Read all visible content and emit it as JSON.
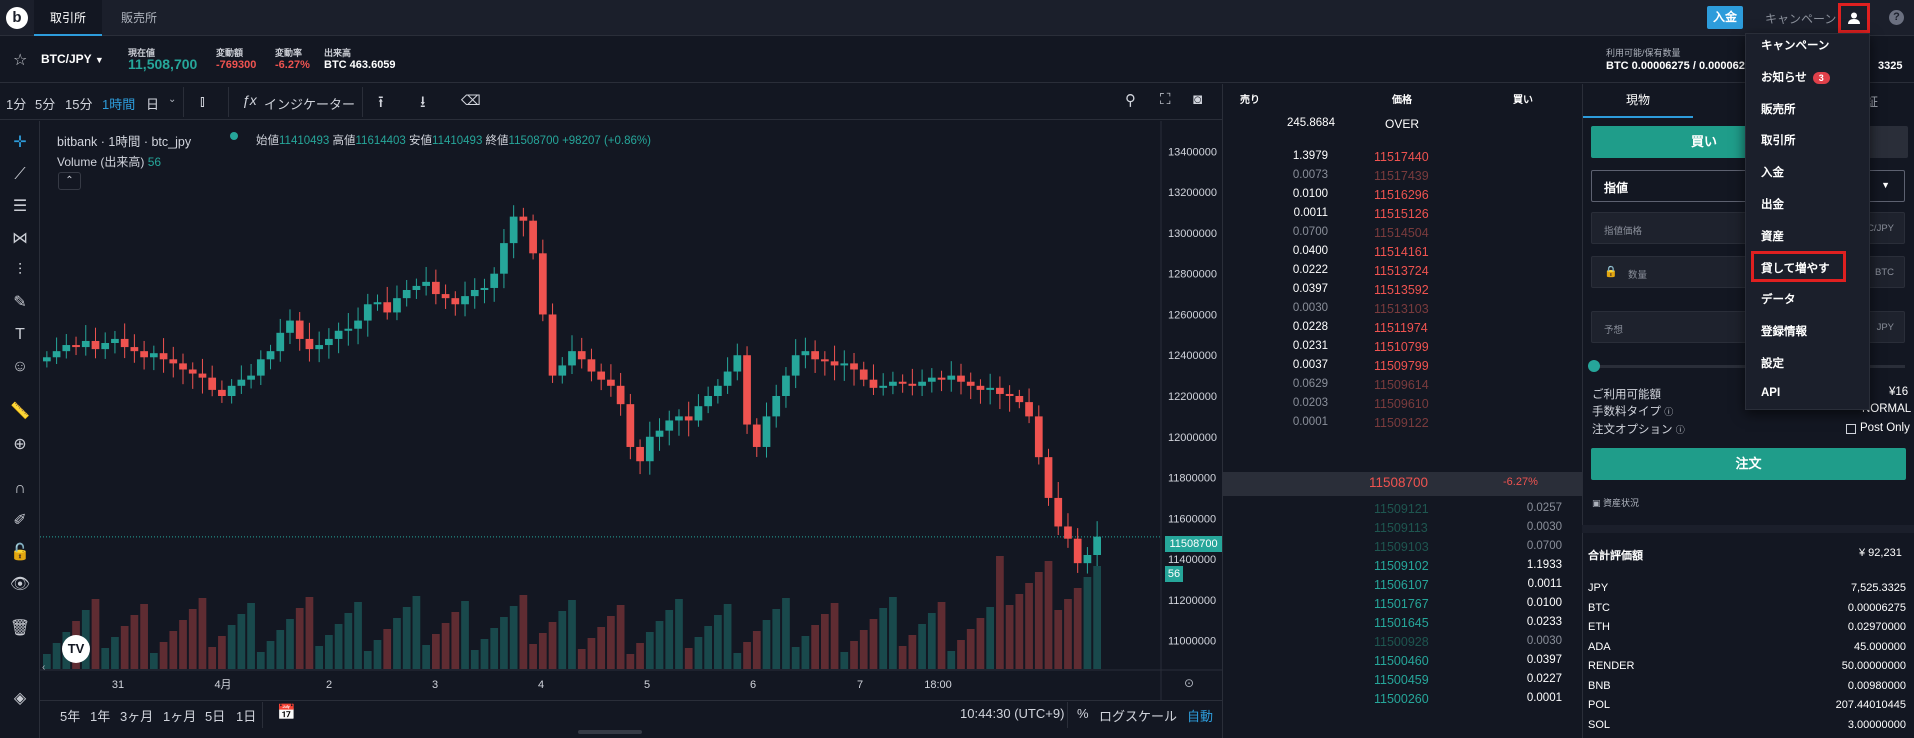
{
  "topbar": {
    "logo": "b",
    "tabs": [
      "取引所",
      "販売所"
    ],
    "deposit": "入金",
    "campaign": "キャンペーン",
    "help": "?"
  },
  "ticker": {
    "pair": "BTC/JPY",
    "current_price_label": "現在値",
    "current_price": "11,508,700",
    "change_label": "変動額",
    "change": "-769300",
    "change_rate_label": "変動率",
    "change_rate": "-6.27%",
    "volume_label": "出来高",
    "volume": "BTC 463.6059",
    "available_label": "利用可能/保有数量",
    "available": "BTC 0.00006275 / 0.0000627",
    "available_right": "3325"
  },
  "chart_toolbar": {
    "timeframes": [
      "1分",
      "5分",
      "15分",
      "1時間",
      "日"
    ],
    "indicator": "インジケーター"
  },
  "chart": {
    "legend_title": "bitbank · 1時間 · btc_jpy",
    "open_label": "始値",
    "open": "11410493",
    "high_label": "高値",
    "high": "11614403",
    "low_label": "安値",
    "low": "11410493",
    "close_label": "終値",
    "close": "11508700",
    "change": "+98207 (+0.86%)",
    "volume_label": "Volume (出来高)",
    "volume_value": "56",
    "price_tag": "11508700",
    "volume_tag": "56",
    "bottom_ranges": [
      "5年",
      "1年",
      "3ヶ月",
      "1ヶ月",
      "5日",
      "1日"
    ],
    "clock": "10:44:30 (UTC+9)",
    "percent": "%",
    "log_scale": "ログスケール",
    "auto": "自動"
  },
  "chart_data": {
    "type": "candlestick",
    "y_ticks": [
      "13400000",
      "13200000",
      "13000000",
      "12800000",
      "12600000",
      "12400000",
      "12200000",
      "12000000",
      "11800000",
      "11600000",
      "11400000",
      "11200000",
      "11000000"
    ],
    "x_ticks": [
      "31",
      "4月",
      "2",
      "3",
      "4",
      "5",
      "6",
      "7",
      "18:00"
    ],
    "closes": [
      12390000,
      12420000,
      12450000,
      12440000,
      12470000,
      12430000,
      12460000,
      12480000,
      12440000,
      12420000,
      12390000,
      12410000,
      12380000,
      12360000,
      12330000,
      12310000,
      12290000,
      12230000,
      12200000,
      12250000,
      12280000,
      12300000,
      12380000,
      12420000,
      12510000,
      12570000,
      12480000,
      12430000,
      12450000,
      12480000,
      12520000,
      12530000,
      12570000,
      12650000,
      12660000,
      12610000,
      12680000,
      12720000,
      12740000,
      12760000,
      12700000,
      12680000,
      12650000,
      12690000,
      12720000,
      12730000,
      12800000,
      12950000,
      13080000,
      13060000,
      12900000,
      12600000,
      12300000,
      12350000,
      12420000,
      12380000,
      12320000,
      12280000,
      12250000,
      12160000,
      11950000,
      11880000,
      12000000,
      12030000,
      12080000,
      12100000,
      12080000,
      12150000,
      12200000,
      12250000,
      12320000,
      12400000,
      12060000,
      11950000,
      12100000,
      12200000,
      12300000,
      12400000,
      12420000,
      12380000,
      12370000,
      12350000,
      12360000,
      12330000,
      12280000,
      12240000,
      12250000,
      12270000,
      12260000,
      12250000,
      12270000,
      12290000,
      12280000,
      12300000,
      12270000,
      12250000,
      12230000,
      12240000,
      12210000,
      12200000,
      12170000,
      12100000,
      11900000,
      11700000,
      11560000,
      11500000,
      11380000,
      11420000,
      11510000
    ]
  },
  "orderbook": {
    "headers": [
      "売り",
      "価格",
      "買い"
    ],
    "over_qty": "245.8684",
    "over_label": "OVER",
    "asks": [
      {
        "qty": "1.3979",
        "price": "11517440",
        "bright": true
      },
      {
        "qty": "0.0073",
        "price": "11517439",
        "bright": false
      },
      {
        "qty": "0.0100",
        "price": "11516296",
        "bright": true
      },
      {
        "qty": "0.0011",
        "price": "11515126",
        "bright": true
      },
      {
        "qty": "0.0700",
        "price": "11514504",
        "bright": false
      },
      {
        "qty": "0.0400",
        "price": "11514161",
        "bright": true
      },
      {
        "qty": "0.0222",
        "price": "11513724",
        "bright": true
      },
      {
        "qty": "0.0397",
        "price": "11513592",
        "bright": true
      },
      {
        "qty": "0.0030",
        "price": "11513103",
        "bright": false
      },
      {
        "qty": "0.0228",
        "price": "11511974",
        "bright": true
      },
      {
        "qty": "0.0231",
        "price": "11510799",
        "bright": true
      },
      {
        "qty": "0.0037",
        "price": "11509799",
        "bright": true
      },
      {
        "qty": "0.0629",
        "price": "11509614",
        "bright": false
      },
      {
        "qty": "0.0203",
        "price": "11509610",
        "bright": false
      },
      {
        "qty": "0.0001",
        "price": "11509122",
        "bright": false
      }
    ],
    "mid_price": "11508700",
    "mid_change": "-6.27%",
    "bids": [
      {
        "price": "11509121",
        "qty": "0.0257",
        "bright": false
      },
      {
        "price": "11509113",
        "qty": "0.0030",
        "bright": false
      },
      {
        "price": "11509103",
        "qty": "0.0700",
        "bright": false
      },
      {
        "price": "11509102",
        "qty": "1.1933",
        "bright": true
      },
      {
        "price": "11506107",
        "qty": "0.0011",
        "bright": true
      },
      {
        "price": "11501767",
        "qty": "0.0100",
        "bright": true
      },
      {
        "price": "11501645",
        "qty": "0.0233",
        "bright": true
      },
      {
        "price": "11500928",
        "qty": "0.0030",
        "bright": false
      },
      {
        "price": "11500460",
        "qty": "0.0397",
        "bright": true
      },
      {
        "price": "11500459",
        "qty": "0.0227",
        "bright": true
      },
      {
        "price": "11500260",
        "qty": "0.0001",
        "bright": true
      }
    ]
  },
  "order_panel": {
    "tabs": [
      "現物",
      "信",
      "証"
    ],
    "buy_label": "買い",
    "order_type": "指値",
    "price_placeholder": "指値価格",
    "price_unit": "C/JPY",
    "qty_placeholder": "数量",
    "qty_unit": "BTC",
    "estimate_placeholder": "予想",
    "estimate_unit": "JPY",
    "available_label": "ご利用可能額",
    "available_value": "¥16",
    "fee_label": "手数料タイプ",
    "fee_value": "NORMAL",
    "order_option_label": "注文オプション",
    "post_only": "Post Only",
    "order_button": "注文",
    "asset_status": "資産状況",
    "total_label": "合計評価額",
    "total_value": "¥ 92,231",
    "assets": [
      {
        "name": "JPY",
        "value": "7,525.3325"
      },
      {
        "name": "BTC",
        "value": "0.00006275"
      },
      {
        "name": "ETH",
        "value": "0.02970000"
      },
      {
        "name": "ADA",
        "value": "45.000000"
      },
      {
        "name": "RENDER",
        "value": "50.00000000"
      },
      {
        "name": "BNB",
        "value": "0.00980000"
      },
      {
        "name": "POL",
        "value": "207.44010445"
      },
      {
        "name": "SOL",
        "value": "3.00000000"
      }
    ]
  },
  "user_menu": {
    "items": [
      "キャンペーン",
      "お知らせ",
      "販売所",
      "取引所",
      "入金",
      "出金",
      "資産",
      "貸して増やす",
      "データ",
      "登録情報",
      "設定",
      "API"
    ],
    "notice_badge": "3"
  },
  "colors": {
    "up": "#26a69a",
    "down": "#ef5350",
    "accent": "#2d9cdb",
    "highlight": "#e02020"
  }
}
